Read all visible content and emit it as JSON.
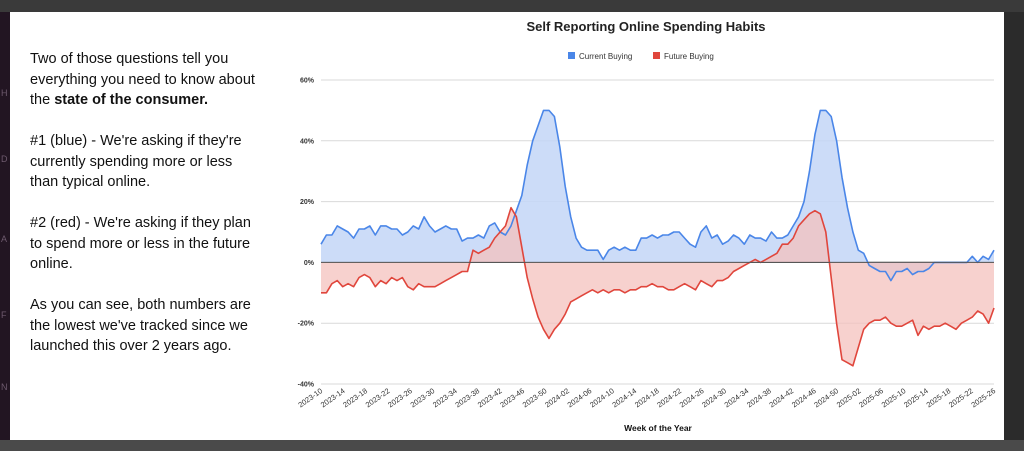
{
  "text_panel": {
    "p1_text": "Two of those questions tell you everything you need to know about the ",
    "p1_bold": "state of the consumer.",
    "p2": "#1 (blue) - We're asking if they're currently spending more or less than typical online.",
    "p3": "#2 (red) - We're asking if they plan to spend more or less in the future online.",
    "p4": "As you can see, both numbers are the lowest we've tracked since we launched this over 2 years ago."
  },
  "side_letters": [
    "H",
    "D",
    "A",
    "F",
    "N"
  ],
  "chart_data": {
    "type": "area",
    "title": "Self Reporting Online Spending Habits",
    "xlabel": "Week of the Year",
    "ylabel": "",
    "ylim": [
      -40,
      60
    ],
    "yticks": [
      "60%",
      "40%",
      "20%",
      "0%",
      "-20%",
      "-40%"
    ],
    "ytick_values": [
      60,
      40,
      20,
      0,
      -20,
      -40
    ],
    "grid": true,
    "legend_position": "top-center",
    "x_tick_labels": [
      "2023-10",
      "2023-14",
      "2023-18",
      "2023-22",
      "2023-26",
      "2023-30",
      "2023-34",
      "2023-38",
      "2023-42",
      "2023-46",
      "2023-50",
      "2024-02",
      "2024-06",
      "2024-10",
      "2024-14",
      "2024-18",
      "2024-22",
      "2024-26",
      "2024-30",
      "2024-34",
      "2024-38",
      "2024-42",
      "2024-46",
      "2024-50",
      "2025-02",
      "2025-06",
      "2025-10",
      "2025-14",
      "2025-18",
      "2025-22",
      "2025-26"
    ],
    "series": [
      {
        "name": "Current Buying",
        "color": "#4a86e8",
        "fill": "#c3d6f7",
        "values": [
          6,
          9,
          9,
          12,
          11,
          10,
          8,
          11,
          11,
          12,
          9,
          12,
          12,
          11,
          11,
          9,
          10,
          12,
          11,
          15,
          12,
          10,
          11,
          12,
          11,
          11,
          7,
          8,
          8,
          9,
          8,
          12,
          13,
          10,
          9,
          12,
          17,
          22,
          32,
          40,
          45,
          50,
          50,
          48,
          38,
          25,
          15,
          8,
          5,
          4,
          4,
          4,
          1,
          4,
          5,
          4,
          5,
          4,
          4,
          8,
          8,
          9,
          8,
          9,
          9,
          10,
          10,
          8,
          6,
          5,
          10,
          12,
          8,
          9,
          6,
          7,
          9,
          8,
          6,
          9,
          8,
          8,
          7,
          10,
          8,
          8,
          9,
          12,
          15,
          20,
          30,
          42,
          50,
          50,
          48,
          40,
          28,
          18,
          10,
          4,
          3,
          -1,
          -2,
          -3,
          -3,
          -6,
          -3,
          -3,
          -2,
          -4,
          -3,
          -3,
          -2,
          0,
          0,
          0,
          0,
          0,
          0,
          0,
          2,
          0,
          2,
          1,
          4
        ]
      },
      {
        "name": "Future Buying",
        "color": "#e0463c",
        "fill": "#f4c2bd",
        "values": [
          -10,
          -10,
          -7,
          -6,
          -8,
          -7,
          -8,
          -5,
          -4,
          -5,
          -8,
          -6,
          -7,
          -5,
          -6,
          -5,
          -8,
          -9,
          -7,
          -8,
          -8,
          -8,
          -7,
          -6,
          -5,
          -4,
          -3,
          -3,
          4,
          3,
          4,
          5,
          8,
          10,
          12,
          18,
          15,
          5,
          -5,
          -12,
          -18,
          -22,
          -25,
          -22,
          -20,
          -17,
          -13,
          -12,
          -11,
          -10,
          -9,
          -10,
          -9,
          -10,
          -9,
          -9,
          -10,
          -9,
          -9,
          -8,
          -8,
          -7,
          -8,
          -8,
          -9,
          -9,
          -8,
          -7,
          -8,
          -9,
          -6,
          -7,
          -8,
          -6,
          -6,
          -5,
          -3,
          -2,
          -1,
          0,
          1,
          0,
          1,
          2,
          3,
          6,
          6,
          8,
          12,
          14,
          16,
          17,
          16,
          10,
          -5,
          -20,
          -32,
          -33,
          -34,
          -28,
          -22,
          -20,
          -19,
          -19,
          -18,
          -20,
          -21,
          -21,
          -20,
          -19,
          -24,
          -21,
          -22,
          -21,
          -21,
          -20,
          -21,
          -22,
          -20,
          -19,
          -18,
          -16,
          -17,
          -20,
          -15
        ]
      }
    ]
  }
}
